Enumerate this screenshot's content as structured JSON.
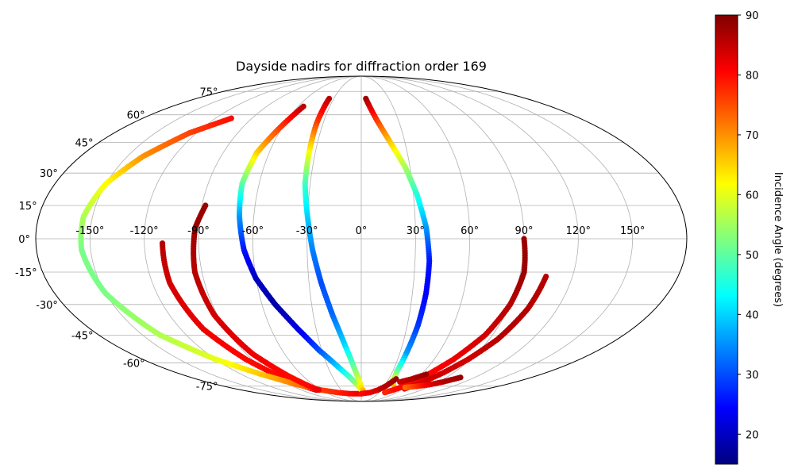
{
  "chart_data": {
    "type": "scatter",
    "projection": "mollweide",
    "title": "Dayside nadirs for diffraction order 169",
    "lon_ticks": [
      "-150°",
      "-120°",
      "-90°",
      "-60°",
      "-30°",
      "0°",
      "30°",
      "60°",
      "90°",
      "120°",
      "150°"
    ],
    "lat_ticks": [
      "75°",
      "60°",
      "45°",
      "30°",
      "15°",
      "0°",
      "-15°",
      "-30°",
      "-45°",
      "-60°",
      "-75°"
    ],
    "grid": true,
    "colorbar": {
      "label": "Incidence Angle (degrees)",
      "colormap": "jet",
      "range": [
        15,
        90
      ],
      "ticks": [
        "20",
        "30",
        "40",
        "50",
        "60",
        "70",
        "80",
        "90"
      ],
      "colors": [
        "#00007f",
        "#0000ff",
        "#007fff",
        "#00ffff",
        "#7fff7f",
        "#ffff00",
        "#ff7f00",
        "#ff0000",
        "#7f0000"
      ]
    },
    "tracks": [
      {
        "points": [
          [
            -110,
            -2,
            86
          ],
          [
            -110,
            -20,
            84
          ],
          [
            -105,
            -42,
            82
          ],
          [
            -95,
            -58,
            80
          ],
          [
            -85,
            -68,
            80
          ],
          [
            -75,
            -75,
            82
          ],
          [
            -68,
            -78,
            84
          ]
        ]
      },
      {
        "points": [
          [
            -107,
            58,
            80
          ],
          [
            -125,
            50,
            76
          ],
          [
            -140,
            38,
            70
          ],
          [
            -150,
            25,
            62
          ],
          [
            -155,
            10,
            56
          ],
          [
            -155,
            -5,
            52
          ],
          [
            -150,
            -25,
            52
          ],
          [
            -138,
            -45,
            56
          ],
          [
            -120,
            -58,
            60
          ],
          [
            -100,
            -67,
            66
          ],
          [
            -80,
            -74,
            72
          ],
          [
            -60,
            -78,
            76
          ],
          [
            -40,
            -80,
            78
          ],
          [
            -20,
            -81,
            80
          ],
          [
            0,
            -81,
            82
          ]
        ]
      },
      {
        "points": [
          [
            -88,
            15,
            88
          ],
          [
            -92,
            5,
            88
          ],
          [
            -94,
            -15,
            86
          ],
          [
            -92,
            -35,
            84
          ],
          [
            -85,
            -55,
            82
          ],
          [
            -75,
            -68,
            80
          ],
          [
            -68,
            -75,
            80
          ],
          [
            -64,
            -78,
            82
          ]
        ]
      },
      {
        "points": [
          [
            -55,
            65,
            86
          ],
          [
            -62,
            52,
            76
          ],
          [
            -68,
            40,
            66
          ],
          [
            -70,
            25,
            50
          ],
          [
            -68,
            10,
            36
          ],
          [
            -65,
            -5,
            26
          ],
          [
            -60,
            -18,
            20
          ],
          [
            -52,
            -30,
            18
          ],
          [
            -42,
            -42,
            22
          ],
          [
            -32,
            -53,
            30
          ],
          [
            -20,
            -63,
            40
          ],
          [
            -8,
            -72,
            52
          ],
          [
            0,
            -78,
            62
          ],
          [
            5,
            -80,
            68
          ]
        ]
      },
      {
        "points": [
          [
            -35,
            70,
            86
          ],
          [
            -35,
            55,
            76
          ],
          [
            -34,
            40,
            62
          ],
          [
            -33,
            25,
            48
          ],
          [
            -30,
            10,
            40
          ],
          [
            -27,
            -5,
            34
          ],
          [
            -23,
            -20,
            30
          ],
          [
            -18,
            -35,
            32
          ],
          [
            -12,
            -50,
            40
          ],
          [
            -6,
            -64,
            52
          ],
          [
            0,
            -76,
            64
          ],
          [
            5,
            -80,
            70
          ]
        ]
      },
      {
        "points": [
          [
            5,
            70,
            88
          ],
          [
            12,
            58,
            78
          ],
          [
            20,
            45,
            66
          ],
          [
            27,
            33,
            56
          ],
          [
            32,
            20,
            46
          ],
          [
            36,
            5,
            36
          ],
          [
            38,
            -10,
            26
          ],
          [
            38,
            -25,
            24
          ],
          [
            37,
            -40,
            28
          ],
          [
            35,
            -55,
            36
          ],
          [
            34,
            -65,
            50
          ],
          [
            36,
            -72,
            62
          ],
          [
            45,
            -76,
            68
          ]
        ]
      },
      {
        "points": [
          [
            0,
            -81,
            80
          ],
          [
            15,
            -80,
            82
          ],
          [
            25,
            -78,
            84
          ],
          [
            32,
            -75,
            86
          ],
          [
            38,
            -70,
            88
          ]
        ]
      },
      {
        "points": [
          [
            90,
            0,
            88
          ],
          [
            92,
            -15,
            88
          ],
          [
            90,
            -30,
            86
          ],
          [
            85,
            -45,
            84
          ],
          [
            76,
            -58,
            82
          ],
          [
            66,
            -68,
            80
          ],
          [
            56,
            -75,
            80
          ],
          [
            48,
            -78,
            80
          ],
          [
            40,
            -80,
            78
          ]
        ]
      },
      {
        "points": [
          [
            105,
            -17,
            86
          ],
          [
            102,
            -32,
            86
          ],
          [
            96,
            -47,
            86
          ],
          [
            88,
            -58,
            84
          ],
          [
            80,
            -66,
            84
          ],
          [
            72,
            -72,
            84
          ],
          [
            62,
            -77,
            82
          ]
        ]
      },
      {
        "points": [
          [
            60,
            -76,
            72
          ],
          [
            75,
            -75,
            78
          ],
          [
            85,
            -74,
            82
          ],
          [
            95,
            -72,
            86
          ],
          [
            105,
            -69,
            88
          ]
        ]
      },
      {
        "points": [
          [
            45,
            -72,
            84
          ],
          [
            55,
            -70,
            86
          ],
          [
            65,
            -67,
            88
          ]
        ]
      }
    ]
  }
}
